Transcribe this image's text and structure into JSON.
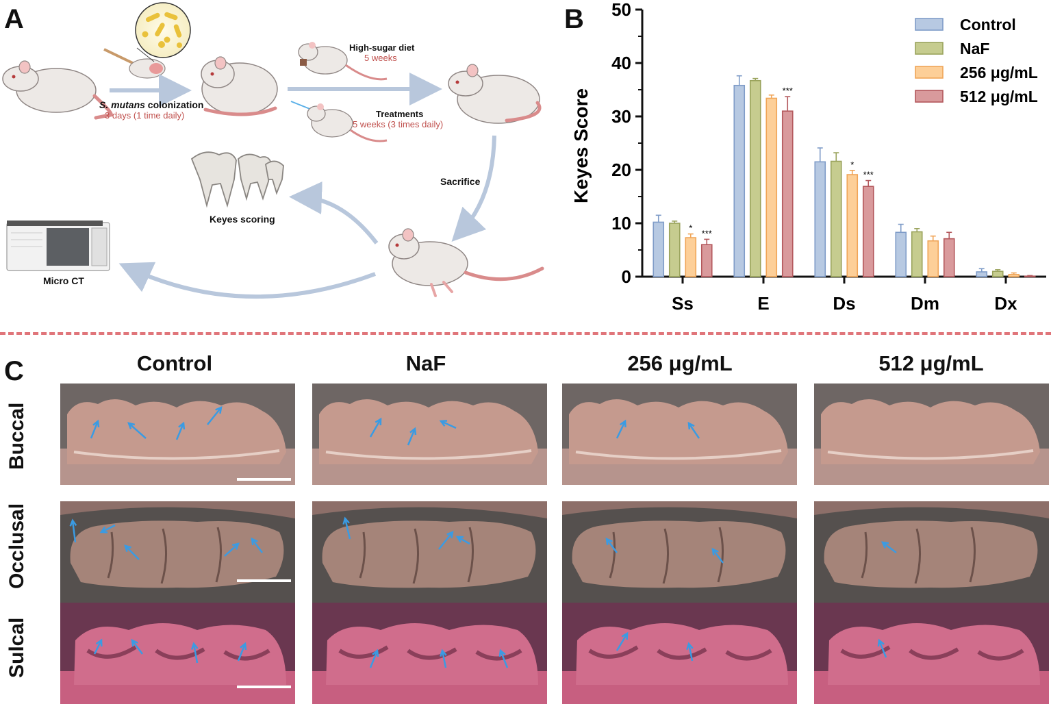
{
  "panels": {
    "a": "A",
    "b": "B",
    "c": "C"
  },
  "schematic": {
    "colonization_species": "S. mutans",
    "colonization_label": " colonization",
    "colonization_duration": "3 days (1 time daily)",
    "diet_label": "High-sugar diet",
    "diet_duration": "5 weeks",
    "treatment_label": "Treatments",
    "treatment_duration": "5 weeks (3 times daily)",
    "sacrifice_label": "Sacrifice",
    "keyes_label": "Keyes scoring",
    "microct_label": "Micro CT",
    "colors": {
      "arrow": "#b8c7dc",
      "red_text": "#c0504d"
    }
  },
  "chart_data": {
    "type": "bar",
    "ylabel": "Keyes Score",
    "ylim": [
      0,
      50
    ],
    "yticks": [
      "0",
      "10",
      "20",
      "30",
      "40",
      "50"
    ],
    "categories": [
      "Ss",
      "E",
      "Ds",
      "Dm",
      "Dx"
    ],
    "legend_position": "top-right",
    "series": [
      {
        "name": "Control",
        "fill": "#b7c9e2",
        "stroke": "#7f9cc8",
        "values": [
          10.2,
          35.8,
          21.5,
          8.3,
          0.9
        ],
        "errors": [
          1.3,
          1.8,
          2.6,
          1.5,
          0.6
        ]
      },
      {
        "name": "NaF",
        "fill": "#c6cc8f",
        "stroke": "#9aa35c",
        "values": [
          10.0,
          36.7,
          21.6,
          8.4,
          1.0
        ],
        "errors": [
          0.4,
          0.4,
          1.6,
          0.6,
          0.3
        ]
      },
      {
        "name": "256 μg/mL",
        "fill": "#fdcf98",
        "stroke": "#f0a558",
        "values": [
          7.3,
          33.4,
          19.1,
          6.7,
          0.4
        ],
        "errors": [
          0.7,
          0.6,
          0.8,
          0.9,
          0.3
        ]
      },
      {
        "name": "512 μg/mL",
        "fill": "#d99a9c",
        "stroke": "#b3585c",
        "values": [
          6.0,
          31.0,
          16.9,
          7.1,
          0.1
        ],
        "errors": [
          1.0,
          2.7,
          1.1,
          1.2,
          0.1
        ]
      }
    ],
    "significance": [
      {
        "category": 0,
        "series": 2,
        "label": "*"
      },
      {
        "category": 0,
        "series": 3,
        "label": "***"
      },
      {
        "category": 1,
        "series": 3,
        "label": "***"
      },
      {
        "category": 2,
        "series": 2,
        "label": "*"
      },
      {
        "category": 2,
        "series": 3,
        "label": "***"
      }
    ]
  },
  "grid": {
    "columns": [
      "Control",
      "NaF",
      "256 μg/mL",
      "512 μg/mL"
    ],
    "rows": [
      "Buccal",
      "Occlusal",
      "Sulcal"
    ],
    "colors": {
      "arrow": "#3a9be3",
      "scale_bar": "#ffffff"
    }
  }
}
